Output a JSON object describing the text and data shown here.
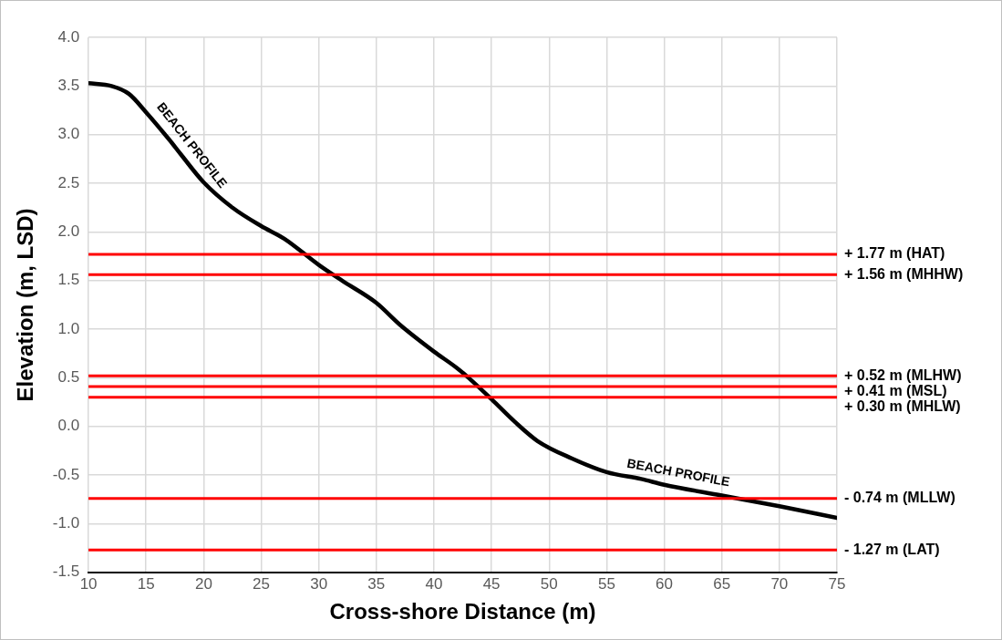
{
  "chart_data": {
    "type": "line",
    "xlabel": "Cross-shore Distance (m)",
    "ylabel": "Elevation (m, LSD)",
    "xlim": [
      10,
      75
    ],
    "xticks": [
      10,
      15,
      20,
      25,
      30,
      35,
      40,
      45,
      50,
      55,
      60,
      65,
      70,
      75
    ],
    "ylim": [
      -1.5,
      4.0
    ],
    "yticks": [
      {
        "value": -1.5,
        "label": "-1.5"
      },
      {
        "value": -1,
        "label": "-1.0"
      },
      {
        "value": -0.5,
        "label": "-0.5"
      },
      {
        "value": 0,
        "label": "0.0"
      },
      {
        "value": 0.5,
        "label": "0.5"
      },
      {
        "value": 1,
        "label": "1.0"
      },
      {
        "value": 1.5,
        "label": "1.5"
      },
      {
        "value": 2,
        "label": "2.0"
      },
      {
        "value": 2.5,
        "label": "2.5"
      },
      {
        "value": 3,
        "label": "3.0"
      },
      {
        "value": 3.5,
        "label": "3.5"
      },
      {
        "value": 4,
        "label": "4.0"
      }
    ],
    "grid": true,
    "legend": false,
    "marker": "none",
    "line_style": "solid",
    "series": [
      {
        "color": "#000000",
        "x": [
          10,
          12,
          13.5,
          15,
          17,
          18,
          20,
          22.5,
          25,
          27,
          30,
          32,
          35,
          37,
          40,
          42,
          43,
          45,
          47,
          49,
          52,
          55,
          58,
          60,
          65,
          70,
          75
        ],
        "values": [
          3.53,
          3.5,
          3.42,
          3.23,
          2.95,
          2.8,
          2.51,
          2.25,
          2.06,
          1.93,
          1.66,
          1.5,
          1.27,
          1.05,
          0.77,
          0.6,
          0.5,
          0.28,
          0.05,
          -0.15,
          -0.33,
          -0.47,
          -0.54,
          -0.6,
          -0.71,
          -0.82,
          -0.94
        ]
      }
    ],
    "ref_lines": [
      {
        "axis": "y",
        "value": 1.77,
        "label": "+ 1.77 m (HAT)",
        "color": "#ff0000"
      },
      {
        "axis": "y",
        "value": 1.56,
        "label": "+ 1.56 m (MHHW)",
        "color": "#ff0000"
      },
      {
        "axis": "y",
        "value": 0.52,
        "label": "+ 0.52 m (MLHW)",
        "color": "#ff0000"
      },
      {
        "axis": "y",
        "value": 0.41,
        "label": "+ 0.41 m (MSL)",
        "color": "#ff0000"
      },
      {
        "axis": "y",
        "value": 0.3,
        "label": "+ 0.30 m (MHLW)",
        "color": "#ff0000"
      },
      {
        "axis": "y",
        "value": -0.74,
        "label": "- 0.74 m (MLLW)",
        "color": "#ff0000"
      },
      {
        "axis": "y",
        "value": -1.27,
        "label": "- 1.27 m (LAT)",
        "color": "#ff0000"
      }
    ],
    "annotations": [
      {
        "text": "BEACH PROFILE",
        "x": 18,
        "y": 2.8
      },
      {
        "text": "BEACH PROFILE",
        "x": 61,
        "y": -0.62
      }
    ]
  }
}
